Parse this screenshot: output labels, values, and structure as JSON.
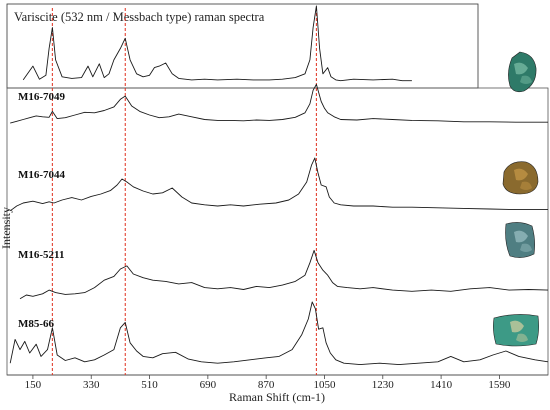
{
  "chart_data": {
    "type": "line",
    "title": "",
    "xlabel": "Raman Shift (cm-1)",
    "ylabel": "Intensity",
    "xlim": [
      70,
      1740
    ],
    "x_ticks": [
      150,
      330,
      510,
      690,
      870,
      1050,
      1230,
      1410,
      1590
    ],
    "grid": false,
    "reference_lines_x": [
      210,
      435,
      1025
    ],
    "reference_line_color": "#e0301e",
    "trace_color": "#1a1a1a",
    "series": [
      {
        "name": "Variscite (532 nm / Messbach type) raman spectra",
        "x": [
          120,
          150,
          170,
          190,
          200,
          210,
          220,
          240,
          270,
          300,
          320,
          335,
          355,
          370,
          385,
          400,
          420,
          435,
          450,
          470,
          490,
          510,
          525,
          540,
          560,
          580,
          600,
          640,
          680,
          720,
          780,
          830,
          880,
          920,
          960,
          990,
          1005,
          1015,
          1025,
          1035,
          1045,
          1060,
          1070,
          1085,
          1100,
          1140,
          1200,
          1260,
          1290,
          1320
        ],
        "y": [
          0.04,
          0.22,
          0.05,
          0.1,
          0.45,
          0.72,
          0.3,
          0.08,
          0.06,
          0.07,
          0.22,
          0.08,
          0.25,
          0.07,
          0.12,
          0.3,
          0.45,
          0.58,
          0.3,
          0.12,
          0.08,
          0.1,
          0.2,
          0.22,
          0.26,
          0.12,
          0.06,
          0.04,
          0.05,
          0.04,
          0.05,
          0.04,
          0.04,
          0.05,
          0.07,
          0.12,
          0.3,
          0.72,
          1.0,
          0.45,
          0.12,
          0.2,
          0.08,
          0.04,
          0.03,
          0.05,
          0.04,
          0.05,
          0.03,
          0.03
        ]
      },
      {
        "name": "M16-7049",
        "x": [
          80,
          100,
          120,
          140,
          160,
          180,
          200,
          210,
          225,
          250,
          280,
          310,
          340,
          370,
          400,
          420,
          435,
          455,
          480,
          510,
          540,
          570,
          600,
          640,
          680,
          720,
          760,
          800,
          840,
          880,
          920,
          960,
          990,
          1005,
          1015,
          1025,
          1040,
          1050,
          1060,
          1080,
          1100,
          1150,
          1200,
          1260,
          1320,
          1400,
          1480,
          1560,
          1640,
          1700,
          1740
        ],
        "y": [
          0.02,
          0.06,
          0.1,
          0.14,
          0.18,
          0.16,
          0.15,
          0.28,
          0.12,
          0.14,
          0.2,
          0.26,
          0.25,
          0.3,
          0.38,
          0.55,
          0.62,
          0.4,
          0.28,
          0.2,
          0.14,
          0.16,
          0.22,
          0.16,
          0.1,
          0.08,
          0.08,
          0.07,
          0.09,
          0.08,
          0.1,
          0.15,
          0.25,
          0.45,
          0.75,
          0.88,
          0.5,
          0.35,
          0.25,
          0.16,
          0.1,
          0.09,
          0.12,
          0.1,
          0.08,
          0.07,
          0.05,
          0.05,
          0.04,
          0.04,
          0.04
        ]
      },
      {
        "name": "M16-7044",
        "x": [
          80,
          100,
          120,
          150,
          180,
          200,
          215,
          240,
          270,
          300,
          330,
          360,
          390,
          410,
          425,
          440,
          460,
          490,
          520,
          550,
          580,
          610,
          640,
          680,
          720,
          760,
          800,
          850,
          900,
          940,
          970,
          995,
          1010,
          1020,
          1030,
          1040,
          1055,
          1065,
          1080,
          1100,
          1140,
          1200,
          1260,
          1320,
          1400,
          1480,
          1560,
          1640,
          1700,
          1740
        ],
        "y": [
          0.02,
          0.1,
          0.15,
          0.18,
          0.14,
          0.17,
          0.15,
          0.2,
          0.24,
          0.2,
          0.26,
          0.3,
          0.36,
          0.45,
          0.55,
          0.5,
          0.42,
          0.35,
          0.3,
          0.32,
          0.4,
          0.25,
          0.15,
          0.12,
          0.1,
          0.12,
          0.1,
          0.13,
          0.15,
          0.2,
          0.3,
          0.5,
          0.78,
          0.9,
          0.65,
          0.45,
          0.42,
          0.25,
          0.15,
          0.12,
          0.1,
          0.1,
          0.08,
          0.08,
          0.07,
          0.06,
          0.05,
          0.04,
          0.04,
          0.04
        ]
      },
      {
        "name": "M16-5211",
        "x": [
          110,
          130,
          150,
          180,
          200,
          220,
          250,
          280,
          310,
          340,
          370,
          400,
          420,
          440,
          460,
          490,
          520,
          560,
          600,
          640,
          680,
          720,
          760,
          800,
          840,
          880,
          920,
          960,
          990,
          1005,
          1018,
          1030,
          1045,
          1060,
          1075,
          1090,
          1120,
          1160,
          1200,
          1260,
          1320,
          1380,
          1440,
          1500,
          1560,
          1620,
          1680,
          1740
        ],
        "y": [
          0.02,
          0.08,
          0.06,
          0.1,
          0.16,
          0.12,
          0.09,
          0.1,
          0.12,
          0.2,
          0.32,
          0.38,
          0.5,
          0.55,
          0.42,
          0.36,
          0.32,
          0.3,
          0.26,
          0.28,
          0.2,
          0.18,
          0.2,
          0.17,
          0.22,
          0.2,
          0.24,
          0.3,
          0.4,
          0.6,
          0.8,
          0.6,
          0.48,
          0.4,
          0.28,
          0.22,
          0.2,
          0.18,
          0.2,
          0.16,
          0.14,
          0.16,
          0.14,
          0.18,
          0.2,
          0.16,
          0.17,
          0.16
        ]
      },
      {
        "name": "M85-66",
        "x": [
          80,
          95,
          110,
          125,
          140,
          160,
          175,
          195,
          210,
          225,
          250,
          280,
          310,
          340,
          370,
          400,
          420,
          435,
          450,
          470,
          490,
          520,
          550,
          590,
          630,
          670,
          720,
          770,
          820,
          870,
          910,
          950,
          980,
          1000,
          1012,
          1022,
          1032,
          1045,
          1055,
          1068,
          1085,
          1110,
          1160,
          1220,
          1280,
          1340,
          1400,
          1440,
          1480,
          1530,
          1570,
          1610,
          1650,
          1700,
          1740
        ],
        "y": [
          0.1,
          0.45,
          0.3,
          0.42,
          0.25,
          0.38,
          0.2,
          0.3,
          0.62,
          0.22,
          0.14,
          0.18,
          0.12,
          0.15,
          0.22,
          0.3,
          0.62,
          0.7,
          0.4,
          0.28,
          0.2,
          0.18,
          0.24,
          0.26,
          0.16,
          0.12,
          0.1,
          0.12,
          0.15,
          0.18,
          0.2,
          0.3,
          0.52,
          0.75,
          1.0,
          0.9,
          0.6,
          0.62,
          0.4,
          0.25,
          0.15,
          0.1,
          0.08,
          0.1,
          0.08,
          0.1,
          0.12,
          0.2,
          0.12,
          0.15,
          0.22,
          0.28,
          0.2,
          0.15,
          0.12
        ]
      }
    ],
    "sample_images": [
      {
        "name": "M16-7049",
        "color": "#2e7a68",
        "highlight": "#7fc0a8"
      },
      {
        "name": "M16-7044",
        "color": "#8a6a2e",
        "highlight": "#c79a48"
      },
      {
        "name": "M16-5211",
        "color": "#4f7e82",
        "highlight": "#9cc2c4"
      },
      {
        "name": "M85-66",
        "color": "#3d9a86",
        "highlight": "#d8d0a0"
      }
    ]
  }
}
